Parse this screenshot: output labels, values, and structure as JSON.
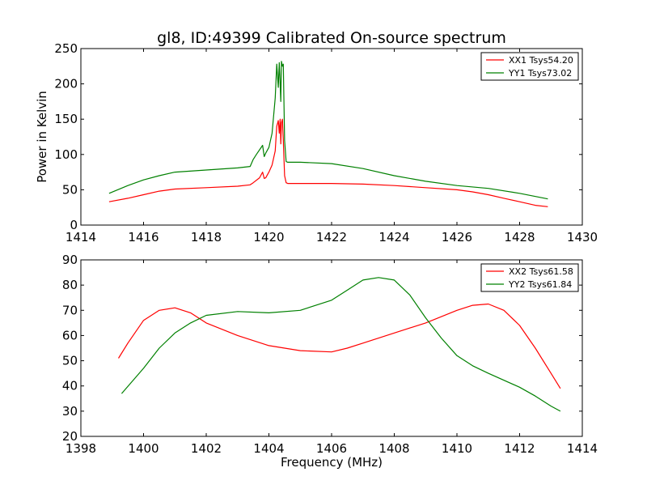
{
  "chart_data": [
    {
      "type": "line",
      "title": "gl8, ID:49399 Calibrated On-source spectrum",
      "xlabel": "",
      "ylabel": "Power in Kelvin",
      "xlim": [
        1414,
        1430
      ],
      "ylim": [
        0,
        250
      ],
      "xticks": [
        "1414",
        "1416",
        "1418",
        "1420",
        "1422",
        "1424",
        "1426",
        "1428",
        "1430"
      ],
      "yticks": [
        "0",
        "50",
        "100",
        "150",
        "200",
        "250"
      ],
      "xtick_values": [
        1414,
        1416,
        1418,
        1420,
        1422,
        1424,
        1426,
        1428,
        1430
      ],
      "ytick_values": [
        0,
        50,
        100,
        150,
        200,
        250
      ],
      "grid": false,
      "legend_position": "top-right",
      "series": [
        {
          "name": "XX1 Tsys54.20",
          "color": "#ff0000",
          "x": [
            1414.9,
            1415.5,
            1416.0,
            1416.5,
            1417.0,
            1418.0,
            1419.0,
            1419.4,
            1419.5,
            1419.7,
            1419.8,
            1419.85,
            1419.9,
            1420.0,
            1420.1,
            1420.2,
            1420.25,
            1420.3,
            1420.33,
            1420.36,
            1420.38,
            1420.4,
            1420.43,
            1420.46,
            1420.5,
            1420.55,
            1420.6,
            1421.0,
            1422.0,
            1423.0,
            1424.0,
            1425.0,
            1426.0,
            1426.5,
            1427.0,
            1427.5,
            1428.0,
            1428.5,
            1428.9
          ],
          "y": [
            33,
            38,
            43,
            48,
            51,
            53,
            55,
            57,
            60,
            67,
            75,
            66,
            67,
            75,
            85,
            105,
            140,
            148,
            130,
            150,
            115,
            145,
            150,
            120,
            70,
            60,
            59,
            59,
            59,
            58,
            56,
            53,
            50,
            47,
            43,
            38,
            33,
            28,
            26
          ]
        },
        {
          "name": "YY1 Tsys73.02",
          "color": "#008000",
          "x": [
            1414.9,
            1415.5,
            1416.0,
            1416.5,
            1417.0,
            1418.0,
            1419.0,
            1419.4,
            1419.5,
            1419.6,
            1419.8,
            1419.85,
            1419.9,
            1420.0,
            1420.1,
            1420.2,
            1420.25,
            1420.3,
            1420.33,
            1420.36,
            1420.38,
            1420.4,
            1420.43,
            1420.46,
            1420.5,
            1420.55,
            1420.6,
            1421.0,
            1422.0,
            1423.0,
            1424.0,
            1425.0,
            1426.0,
            1427.0,
            1428.0,
            1428.9
          ],
          "y": [
            45,
            56,
            64,
            70,
            75,
            78,
            81,
            83,
            93,
            100,
            113,
            97,
            102,
            110,
            130,
            180,
            228,
            195,
            230,
            200,
            175,
            232,
            225,
            228,
            120,
            90,
            89,
            89,
            87,
            80,
            70,
            62,
            56,
            52,
            45,
            37
          ]
        }
      ]
    },
    {
      "type": "line",
      "title": "",
      "xlabel": "Frequency (MHz)",
      "ylabel": "",
      "xlim": [
        1398,
        1414
      ],
      "ylim": [
        20,
        90
      ],
      "xticks": [
        "1398",
        "1400",
        "1402",
        "1404",
        "1406",
        "1408",
        "1410",
        "1412",
        "1414"
      ],
      "yticks": [
        "20",
        "30",
        "40",
        "50",
        "60",
        "70",
        "80",
        "90"
      ],
      "xtick_values": [
        1398,
        1400,
        1402,
        1404,
        1406,
        1408,
        1410,
        1412,
        1414
      ],
      "ytick_values": [
        20,
        30,
        40,
        50,
        60,
        70,
        80,
        90
      ],
      "grid": false,
      "legend_position": "top-right",
      "series": [
        {
          "name": "XX2 Tsys61.58",
          "color": "#ff0000",
          "x": [
            1399.2,
            1399.5,
            1400.0,
            1400.5,
            1401.0,
            1401.5,
            1402.0,
            1403.0,
            1404.0,
            1405.0,
            1406.0,
            1406.5,
            1407.0,
            1408.0,
            1409.0,
            1410.0,
            1410.5,
            1411.0,
            1411.5,
            1412.0,
            1412.5,
            1413.0,
            1413.3
          ],
          "y": [
            51,
            57,
            66,
            70,
            71,
            69,
            65,
            60,
            56,
            54,
            53.5,
            55,
            57,
            61,
            65,
            70,
            72,
            72.5,
            70,
            64,
            55,
            45,
            39
          ]
        },
        {
          "name": "YY2 Tsys61.84",
          "color": "#008000",
          "x": [
            1399.3,
            1400.0,
            1400.5,
            1401.0,
            1401.5,
            1402.0,
            1403.0,
            1404.0,
            1405.0,
            1406.0,
            1406.5,
            1407.0,
            1407.5,
            1408.0,
            1408.5,
            1409.0,
            1409.5,
            1410.0,
            1410.5,
            1411.0,
            1412.0,
            1412.5,
            1413.0,
            1413.3
          ],
          "y": [
            37,
            47,
            55,
            61,
            65,
            68,
            69.5,
            69,
            70,
            74,
            78,
            82,
            83,
            82,
            76,
            67,
            59,
            52,
            48,
            45,
            39.5,
            36,
            32,
            30
          ]
        }
      ]
    }
  ]
}
